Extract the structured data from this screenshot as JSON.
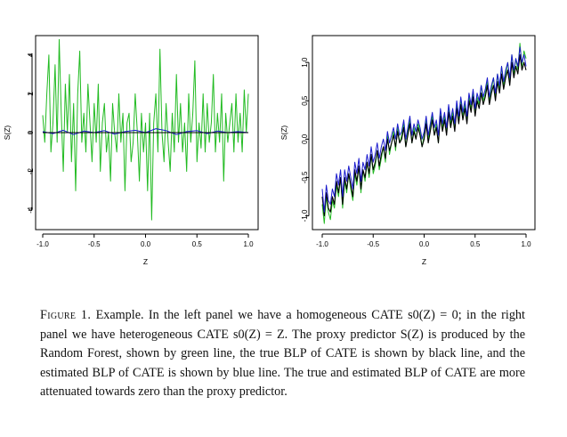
{
  "chart_data": [
    {
      "type": "line",
      "panel": "left",
      "xlabel": "Z",
      "ylabel": "S(Z)",
      "xlim": [
        -1.0,
        1.0
      ],
      "ylim": [
        -5,
        5
      ],
      "xticks": [
        -1.0,
        -0.5,
        0.0,
        0.5,
        1.0
      ],
      "xtick_labels": [
        "-1.0",
        "-0.5",
        "0.0",
        "0.5",
        "1.0"
      ],
      "yticks": [
        -4,
        -2,
        0,
        2,
        4
      ],
      "ytick_labels": [
        "-4",
        "-2",
        "0",
        "2",
        "4"
      ],
      "grid": false,
      "legend": "none",
      "series": [
        {
          "color": "#22bb22",
          "x": [
            -1.0,
            -0.98,
            -0.96,
            -0.94,
            -0.92,
            -0.9,
            -0.88,
            -0.86,
            -0.84,
            -0.82,
            -0.8,
            -0.78,
            -0.76,
            -0.74,
            -0.72,
            -0.7,
            -0.68,
            -0.66,
            -0.64,
            -0.62,
            -0.6,
            -0.58,
            -0.56,
            -0.54,
            -0.52,
            -0.5,
            -0.48,
            -0.46,
            -0.44,
            -0.42,
            -0.4,
            -0.38,
            -0.36,
            -0.34,
            -0.32,
            -0.3,
            -0.28,
            -0.26,
            -0.24,
            -0.22,
            -0.2,
            -0.18,
            -0.16,
            -0.14,
            -0.12,
            -0.1,
            -0.08,
            -0.06,
            -0.04,
            -0.02,
            0.0,
            0.02,
            0.04,
            0.06,
            0.08,
            0.1,
            0.12,
            0.14,
            0.16,
            0.18,
            0.2,
            0.22,
            0.24,
            0.26,
            0.28,
            0.3,
            0.32,
            0.34,
            0.36,
            0.38,
            0.4,
            0.42,
            0.44,
            0.46,
            0.48,
            0.5,
            0.52,
            0.54,
            0.56,
            0.58,
            0.6,
            0.62,
            0.64,
            0.66,
            0.68,
            0.7,
            0.72,
            0.74,
            0.76,
            0.78,
            0.8,
            0.82,
            0.84,
            0.86,
            0.88,
            0.9,
            0.92,
            0.94,
            0.96,
            0.98,
            1.0
          ],
          "y": [
            0.9,
            -0.5,
            2.0,
            4.0,
            -1.0,
            0.5,
            3.5,
            -0.5,
            4.8,
            1.0,
            -2.0,
            2.5,
            0.0,
            3.0,
            -1.5,
            1.5,
            -3.0,
            2.0,
            4.2,
            -0.5,
            1.0,
            -1.0,
            2.5,
            0.5,
            -1.5,
            1.5,
            -0.5,
            2.5,
            -2.0,
            0.5,
            1.5,
            -1.0,
            0.0,
            -2.5,
            1.5,
            0.0,
            -1.0,
            2.0,
            -0.5,
            1.0,
            -3.0,
            0.5,
            1.0,
            -1.5,
            -0.5,
            2.0,
            0.0,
            -2.5,
            1.0,
            -1.0,
            0.5,
            -3.0,
            1.0,
            -4.5,
            0.5,
            2.0,
            -1.0,
            4.3,
            0.0,
            -1.5,
            1.5,
            -0.5,
            -2.0,
            1.0,
            -1.0,
            3.0,
            -0.5,
            1.5,
            -1.0,
            0.5,
            -2.0,
            2.0,
            -0.5,
            1.0,
            3.7,
            -1.5,
            0.5,
            -0.8,
            2.0,
            -1.0,
            1.5,
            -0.5,
            0.5,
            3.0,
            -1.0,
            1.0,
            -0.5,
            2.0,
            -2.5,
            1.0,
            -0.5,
            0.5,
            1.5,
            -1.0,
            2.0,
            -0.5,
            1.0,
            -1.0,
            2.2,
            0.0,
            2.0
          ]
        },
        {
          "color": "#1a1acc",
          "x": [
            -1.0,
            -0.9,
            -0.8,
            -0.7,
            -0.6,
            -0.5,
            -0.4,
            -0.3,
            -0.2,
            -0.1,
            0.0,
            0.1,
            0.2,
            0.3,
            0.4,
            0.5,
            0.6,
            0.7,
            0.8,
            0.9,
            1.0
          ],
          "y": [
            0.05,
            -0.05,
            0.12,
            -0.1,
            0.08,
            0.0,
            0.1,
            -0.08,
            0.05,
            0.12,
            0.0,
            0.2,
            0.1,
            -0.1,
            0.05,
            0.1,
            -0.05,
            0.08,
            0.0,
            0.05,
            0.0
          ]
        },
        {
          "color": "#000000",
          "x": [
            -1.0,
            1.0
          ],
          "y": [
            0.0,
            0.0
          ]
        }
      ]
    },
    {
      "type": "line",
      "panel": "right",
      "xlabel": "Z",
      "ylabel": "S(Z)",
      "xlim": [
        -1.0,
        1.0
      ],
      "ylim": [
        -1.18,
        1.35
      ],
      "xticks": [
        -1.0,
        -0.5,
        0.0,
        0.5,
        1.0
      ],
      "xtick_labels": [
        "-1.0",
        "-0.5",
        "0.0",
        "0.5",
        "1.0"
      ],
      "yticks": [
        -1.0,
        -0.5,
        0.0,
        0.5,
        1.0
      ],
      "ytick_labels": [
        "-1.0",
        "-0.5",
        "0.0",
        "0.5",
        "1.0"
      ],
      "grid": false,
      "legend": "none",
      "series": [
        {
          "color": "#22bb22",
          "x": [
            -1.0,
            -0.98,
            -0.96,
            -0.94,
            -0.92,
            -0.9,
            -0.88,
            -0.86,
            -0.84,
            -0.82,
            -0.8,
            -0.78,
            -0.76,
            -0.74,
            -0.72,
            -0.7,
            -0.68,
            -0.66,
            -0.64,
            -0.62,
            -0.6,
            -0.58,
            -0.56,
            -0.54,
            -0.52,
            -0.5,
            -0.48,
            -0.46,
            -0.44,
            -0.42,
            -0.4,
            -0.38,
            -0.36,
            -0.34,
            -0.32,
            -0.3,
            -0.28,
            -0.26,
            -0.24,
            -0.22,
            -0.2,
            -0.18,
            -0.16,
            -0.14,
            -0.12,
            -0.1,
            -0.08,
            -0.06,
            -0.04,
            -0.02,
            0.0,
            0.02,
            0.04,
            0.06,
            0.08,
            0.1,
            0.12,
            0.14,
            0.16,
            0.18,
            0.2,
            0.22,
            0.24,
            0.26,
            0.28,
            0.3,
            0.32,
            0.34,
            0.36,
            0.38,
            0.4,
            0.42,
            0.44,
            0.46,
            0.48,
            0.5,
            0.52,
            0.54,
            0.56,
            0.58,
            0.6,
            0.62,
            0.64,
            0.66,
            0.68,
            0.7,
            0.72,
            0.74,
            0.76,
            0.78,
            0.8,
            0.82,
            0.84,
            0.86,
            0.88,
            0.9,
            0.92,
            0.94,
            0.96,
            0.98,
            1.0
          ],
          "y": [
            -0.85,
            -1.1,
            -0.75,
            -0.95,
            -1.05,
            -0.8,
            -0.9,
            -0.6,
            -0.75,
            -0.5,
            -0.9,
            -0.55,
            -0.7,
            -0.45,
            -0.65,
            -0.8,
            -0.45,
            -0.6,
            -0.35,
            -0.7,
            -0.4,
            -0.55,
            -0.3,
            -0.5,
            -0.2,
            -0.45,
            -0.35,
            -0.15,
            -0.4,
            -0.25,
            -0.1,
            -0.3,
            0.05,
            -0.2,
            -0.05,
            0.1,
            -0.15,
            0.15,
            -0.05,
            0.05,
            0.2,
            -0.1,
            0.1,
            0.25,
            -0.05,
            0.15,
            0.0,
            0.2,
            0.1,
            -0.1,
            0.05,
            0.25,
            0.0,
            0.15,
            0.3,
            0.05,
            0.2,
            -0.05,
            0.35,
            0.15,
            0.3,
            0.1,
            0.4,
            0.2,
            0.35,
            0.15,
            0.45,
            0.25,
            0.5,
            0.3,
            0.45,
            0.25,
            0.55,
            0.4,
            0.6,
            0.35,
            0.55,
            0.45,
            0.7,
            0.5,
            0.6,
            0.75,
            0.5,
            0.65,
            0.8,
            0.55,
            0.85,
            0.65,
            0.95,
            0.7,
            0.85,
            1.0,
            0.75,
            1.1,
            0.85,
            1.05,
            0.9,
            1.25,
            0.95,
            1.15,
            1.05
          ]
        },
        {
          "color": "#000000",
          "x": [
            -1.0,
            -0.98,
            -0.96,
            -0.94,
            -0.92,
            -0.9,
            -0.88,
            -0.86,
            -0.84,
            -0.82,
            -0.8,
            -0.78,
            -0.76,
            -0.74,
            -0.72,
            -0.7,
            -0.68,
            -0.66,
            -0.64,
            -0.62,
            -0.6,
            -0.58,
            -0.56,
            -0.54,
            -0.52,
            -0.5,
            -0.48,
            -0.46,
            -0.44,
            -0.42,
            -0.4,
            -0.38,
            -0.36,
            -0.34,
            -0.32,
            -0.3,
            -0.28,
            -0.26,
            -0.24,
            -0.22,
            -0.2,
            -0.18,
            -0.16,
            -0.14,
            -0.12,
            -0.1,
            -0.08,
            -0.06,
            -0.04,
            -0.02,
            0.0,
            0.02,
            0.04,
            0.06,
            0.08,
            0.1,
            0.12,
            0.14,
            0.16,
            0.18,
            0.2,
            0.22,
            0.24,
            0.26,
            0.28,
            0.3,
            0.32,
            0.34,
            0.36,
            0.38,
            0.4,
            0.42,
            0.44,
            0.46,
            0.48,
            0.5,
            0.52,
            0.54,
            0.56,
            0.58,
            0.6,
            0.62,
            0.64,
            0.66,
            0.68,
            0.7,
            0.72,
            0.74,
            0.76,
            0.78,
            0.8,
            0.82,
            0.84,
            0.86,
            0.88,
            0.9,
            0.92,
            0.94,
            0.96,
            0.98,
            1.0
          ],
          "y": [
            -0.75,
            -1.0,
            -0.7,
            -0.9,
            -0.95,
            -0.75,
            -0.85,
            -0.55,
            -0.7,
            -0.5,
            -0.85,
            -0.5,
            -0.65,
            -0.45,
            -0.6,
            -0.75,
            -0.4,
            -0.55,
            -0.35,
            -0.65,
            -0.4,
            -0.5,
            -0.3,
            -0.45,
            -0.2,
            -0.4,
            -0.3,
            -0.15,
            -0.35,
            -0.2,
            -0.1,
            -0.25,
            0.0,
            -0.15,
            -0.05,
            0.05,
            -0.1,
            0.1,
            -0.05,
            0.0,
            0.15,
            -0.1,
            0.05,
            0.2,
            -0.05,
            0.1,
            0.0,
            0.15,
            0.05,
            -0.1,
            0.0,
            0.2,
            -0.05,
            0.1,
            0.25,
            0.05,
            0.15,
            -0.05,
            0.3,
            0.1,
            0.25,
            0.05,
            0.35,
            0.15,
            0.3,
            0.1,
            0.4,
            0.2,
            0.45,
            0.25,
            0.4,
            0.2,
            0.5,
            0.35,
            0.55,
            0.3,
            0.5,
            0.4,
            0.6,
            0.45,
            0.55,
            0.7,
            0.45,
            0.6,
            0.7,
            0.5,
            0.75,
            0.6,
            0.85,
            0.65,
            0.8,
            0.9,
            0.7,
            1.0,
            0.8,
            0.95,
            0.85,
            1.1,
            0.9,
            1.0,
            0.9
          ]
        },
        {
          "color": "#1a1acc",
          "x": [
            -1.0,
            -0.98,
            -0.96,
            -0.94,
            -0.92,
            -0.9,
            -0.88,
            -0.86,
            -0.84,
            -0.82,
            -0.8,
            -0.78,
            -0.76,
            -0.74,
            -0.72,
            -0.7,
            -0.68,
            -0.66,
            -0.64,
            -0.62,
            -0.6,
            -0.58,
            -0.56,
            -0.54,
            -0.52,
            -0.5,
            -0.48,
            -0.46,
            -0.44,
            -0.42,
            -0.4,
            -0.38,
            -0.36,
            -0.34,
            -0.32,
            -0.3,
            -0.28,
            -0.26,
            -0.24,
            -0.22,
            -0.2,
            -0.18,
            -0.16,
            -0.14,
            -0.12,
            -0.1,
            -0.08,
            -0.06,
            -0.04,
            -0.02,
            0.0,
            0.02,
            0.04,
            0.06,
            0.08,
            0.1,
            0.12,
            0.14,
            0.16,
            0.18,
            0.2,
            0.22,
            0.24,
            0.26,
            0.28,
            0.3,
            0.32,
            0.34,
            0.36,
            0.38,
            0.4,
            0.42,
            0.44,
            0.46,
            0.48,
            0.5,
            0.52,
            0.54,
            0.56,
            0.58,
            0.6,
            0.62,
            0.64,
            0.66,
            0.68,
            0.7,
            0.72,
            0.74,
            0.76,
            0.78,
            0.8,
            0.82,
            0.84,
            0.86,
            0.88,
            0.9,
            0.92,
            0.94,
            0.96,
            0.98,
            1.0
          ],
          "y": [
            -0.65,
            -0.95,
            -0.6,
            -0.8,
            -0.85,
            -0.65,
            -0.75,
            -0.45,
            -0.6,
            -0.4,
            -0.75,
            -0.4,
            -0.55,
            -0.35,
            -0.5,
            -0.65,
            -0.3,
            -0.45,
            -0.25,
            -0.55,
            -0.3,
            -0.4,
            -0.2,
            -0.35,
            -0.1,
            -0.3,
            -0.2,
            -0.05,
            -0.25,
            -0.1,
            0.0,
            -0.15,
            0.1,
            -0.05,
            0.05,
            0.15,
            0.0,
            0.2,
            0.05,
            0.1,
            0.25,
            0.0,
            0.15,
            0.3,
            0.05,
            0.2,
            0.1,
            0.25,
            0.15,
            0.0,
            0.1,
            0.3,
            0.05,
            0.2,
            0.35,
            0.15,
            0.25,
            0.05,
            0.4,
            0.2,
            0.35,
            0.15,
            0.45,
            0.25,
            0.4,
            0.2,
            0.5,
            0.3,
            0.55,
            0.35,
            0.5,
            0.3,
            0.6,
            0.45,
            0.65,
            0.4,
            0.6,
            0.5,
            0.7,
            0.55,
            0.65,
            0.8,
            0.55,
            0.7,
            0.8,
            0.6,
            0.85,
            0.7,
            0.95,
            0.75,
            0.9,
            1.0,
            0.8,
            1.1,
            0.9,
            1.05,
            0.95,
            1.2,
            1.0,
            1.1,
            0.95
          ]
        }
      ]
    }
  ],
  "caption": {
    "label": "Figure 1.",
    "text": "Example. In the left panel we have a homogeneous CATE s0(Z) = 0; in the right panel we have heterogeneous CATE s0(Z) = Z. The proxy predictor S(Z) is produced by the Random Forest, shown by green line, the true BLP of CATE is shown by black line, and the estimated BLP of CATE is shown by blue line. The true and estimated BLP of CATE are more attenuated towards zero than the proxy predictor."
  }
}
